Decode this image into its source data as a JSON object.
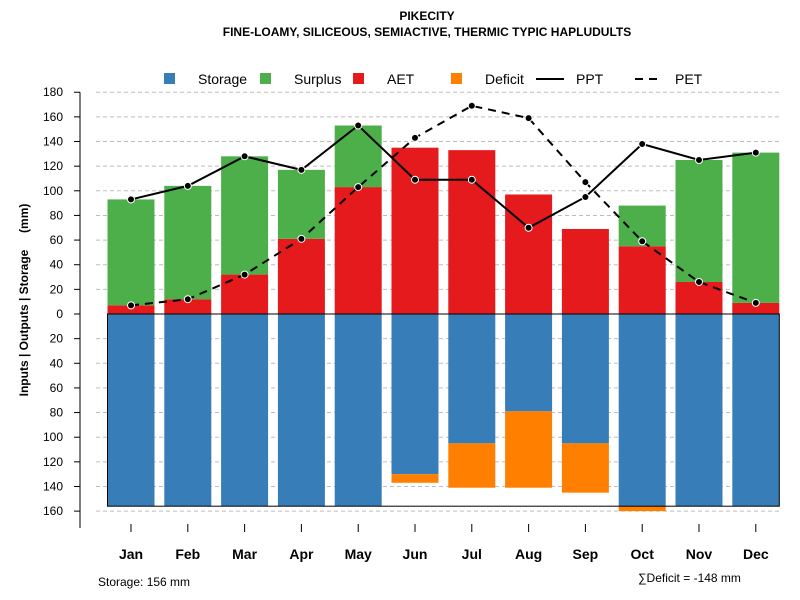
{
  "chart_data": {
    "type": "bar",
    "title": "PIKECITY",
    "subtitle": "FINE-LOAMY, SILICEOUS, SEMIACTIVE, THERMIC TYPIC HAPLUDULTS",
    "ylabel": "Inputs | Outputs | Storage     (mm)",
    "categories": [
      "Jan",
      "Feb",
      "Mar",
      "Apr",
      "May",
      "Jun",
      "Jul",
      "Aug",
      "Sep",
      "Oct",
      "Nov",
      "Dec"
    ],
    "ylim": [
      -160,
      180
    ],
    "yticks": [
      180,
      160,
      140,
      120,
      100,
      80,
      60,
      40,
      20,
      0,
      -20,
      -40,
      -60,
      -80,
      -100,
      -120,
      -140,
      -160
    ],
    "ytick_labels": [
      "180",
      "160",
      "140",
      "120",
      "100",
      "80",
      "60",
      "40",
      "20",
      "0",
      "20",
      "40",
      "60",
      "80",
      "100",
      "120",
      "140",
      "160"
    ],
    "grid": true,
    "legend_position": "top",
    "legend": [
      {
        "label": "Storage",
        "kind": "square",
        "color": "#377eb8"
      },
      {
        "label": "Surplus",
        "kind": "square",
        "color": "#4daf4a"
      },
      {
        "label": "AET",
        "kind": "square",
        "color": "#e41a1c"
      },
      {
        "label": "Deficit",
        "kind": "square",
        "color": "#ff7f00"
      },
      {
        "label": "PPT",
        "kind": "solid-line",
        "color": "#000000"
      },
      {
        "label": "PET",
        "kind": "dashed-line",
        "color": "#000000"
      }
    ],
    "series": [
      {
        "name": "AET",
        "color": "#e41a1c",
        "values": [
          7,
          12,
          32,
          61,
          103,
          135,
          133,
          97,
          69,
          55,
          26,
          9
        ]
      },
      {
        "name": "Surplus",
        "color": "#4daf4a",
        "values": [
          86,
          92,
          96,
          56,
          50,
          0,
          0,
          0,
          0,
          33,
          99,
          122
        ]
      },
      {
        "name": "Storage",
        "color": "#377eb8",
        "values": [
          156,
          156,
          156,
          156,
          156,
          130,
          105,
          79,
          105,
          156,
          156,
          156
        ]
      },
      {
        "name": "Deficit",
        "color": "#ff7f00",
        "values": [
          0,
          0,
          0,
          0,
          0,
          7,
          36,
          62,
          40,
          4,
          0,
          0
        ]
      },
      {
        "name": "PPT",
        "color": "#000000",
        "values": [
          93,
          104,
          128,
          117,
          153,
          109,
          109,
          70,
          95,
          138,
          125,
          131
        ]
      },
      {
        "name": "PET",
        "color": "#000000",
        "values": [
          7,
          12,
          32,
          61,
          103,
          143,
          169,
          159,
          107,
          59,
          26,
          9
        ]
      }
    ],
    "storage_capacity": 156,
    "storage_note": "Storage: 156 mm",
    "deficit_note": "∑Deficit = -148 mm"
  }
}
